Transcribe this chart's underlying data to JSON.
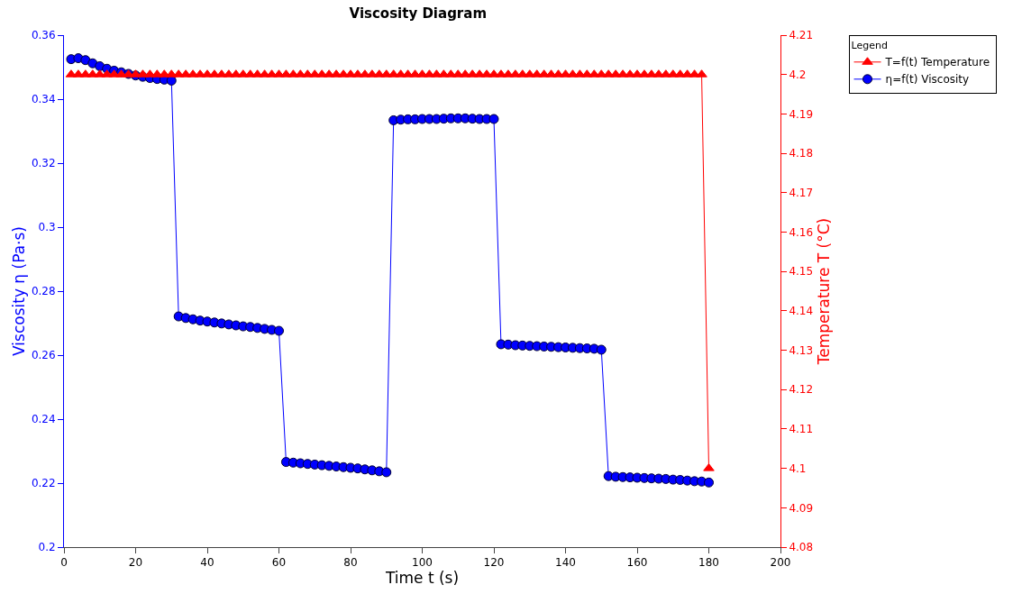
{
  "chart_data": {
    "type": "line",
    "title": "Viscosity Diagram",
    "xlabel": "Time t (s)",
    "ylabel": "Viscosity η (Pa·s)",
    "y2label": "Temperature T (°C)",
    "legend_title": "Legend",
    "x": [
      2,
      4,
      6,
      8,
      10,
      12,
      14,
      16,
      18,
      20,
      22,
      24,
      26,
      28,
      30,
      32,
      34,
      36,
      38,
      40,
      42,
      44,
      46,
      48,
      50,
      52,
      54,
      56,
      58,
      60,
      62,
      64,
      66,
      68,
      70,
      72,
      74,
      76,
      78,
      80,
      82,
      84,
      86,
      88,
      90,
      92,
      94,
      96,
      98,
      100,
      102,
      104,
      106,
      108,
      110,
      112,
      114,
      116,
      118,
      120,
      122,
      124,
      126,
      128,
      130,
      132,
      134,
      136,
      138,
      140,
      142,
      144,
      146,
      148,
      150,
      152,
      154,
      156,
      158,
      160,
      162,
      164,
      166,
      168,
      170,
      172,
      174,
      176,
      178,
      180
    ],
    "series": [
      {
        "name": "T=f(t) Temperature",
        "color": "#ff0000",
        "axis": "y2",
        "marker": "triangle",
        "values": [
          4.2,
          4.2,
          4.2,
          4.2,
          4.2,
          4.2,
          4.2,
          4.2,
          4.2,
          4.2,
          4.2,
          4.2,
          4.2,
          4.2,
          4.2,
          4.2,
          4.2,
          4.2,
          4.2,
          4.2,
          4.2,
          4.2,
          4.2,
          4.2,
          4.2,
          4.2,
          4.2,
          4.2,
          4.2,
          4.2,
          4.2,
          4.2,
          4.2,
          4.2,
          4.2,
          4.2,
          4.2,
          4.2,
          4.2,
          4.2,
          4.2,
          4.2,
          4.2,
          4.2,
          4.2,
          4.2,
          4.2,
          4.2,
          4.2,
          4.2,
          4.2,
          4.2,
          4.2,
          4.2,
          4.2,
          4.2,
          4.2,
          4.2,
          4.2,
          4.2,
          4.2,
          4.2,
          4.2,
          4.2,
          4.2,
          4.2,
          4.2,
          4.2,
          4.2,
          4.2,
          4.2,
          4.2,
          4.2,
          4.2,
          4.2,
          4.2,
          4.2,
          4.2,
          4.2,
          4.2,
          4.2,
          4.2,
          4.2,
          4.2,
          4.2,
          4.2,
          4.2,
          4.2,
          4.2,
          4.1
        ]
      },
      {
        "name": "η=f(t) Viscosity",
        "color": "#0000ff",
        "marker": "circle",
        "values": [
          0.3525,
          0.3528,
          0.3522,
          0.3512,
          0.3503,
          0.3495,
          0.3489,
          0.3484,
          0.3479,
          0.3474,
          0.347,
          0.3466,
          0.3463,
          0.3461,
          0.3458,
          0.2721,
          0.2716,
          0.2712,
          0.2708,
          0.2705,
          0.2702,
          0.2699,
          0.2696,
          0.2693,
          0.269,
          0.2688,
          0.2685,
          0.2682,
          0.2679,
          0.2676,
          0.2266,
          0.2264,
          0.2262,
          0.226,
          0.2258,
          0.2256,
          0.2254,
          0.2252,
          0.225,
          0.2248,
          0.2246,
          0.2243,
          0.224,
          0.2237,
          0.2234,
          0.3334,
          0.3336,
          0.3337,
          0.3337,
          0.3338,
          0.3338,
          0.3338,
          0.3339,
          0.334,
          0.334,
          0.334,
          0.3339,
          0.3338,
          0.3338,
          0.3338,
          0.2634,
          0.2633,
          0.2631,
          0.263,
          0.2629,
          0.2628,
          0.2627,
          0.2626,
          0.2625,
          0.2624,
          0.2623,
          0.2622,
          0.2621,
          0.262,
          0.2617,
          0.2222,
          0.222,
          0.2219,
          0.2218,
          0.2217,
          0.2216,
          0.2215,
          0.2214,
          0.2213,
          0.2211,
          0.221,
          0.2208,
          0.2206,
          0.2205,
          0.2202
        ]
      }
    ],
    "xlim": [
      0,
      200
    ],
    "xticks": [
      0,
      20,
      40,
      60,
      80,
      100,
      120,
      140,
      160,
      180,
      200
    ],
    "ylim": [
      0.2,
      0.36
    ],
    "yticks": [
      0.2,
      0.22,
      0.24,
      0.26,
      0.28,
      0.3,
      0.32,
      0.34,
      0.36
    ],
    "y2lim": [
      4.08,
      4.21
    ],
    "y2ticks": [
      4.08,
      4.09,
      4.1,
      4.11,
      4.12,
      4.13,
      4.14,
      4.15,
      4.16,
      4.17,
      4.18,
      4.19,
      4.2,
      4.21
    ],
    "grid": false,
    "legend": "top right",
    "line_style": "solid"
  }
}
